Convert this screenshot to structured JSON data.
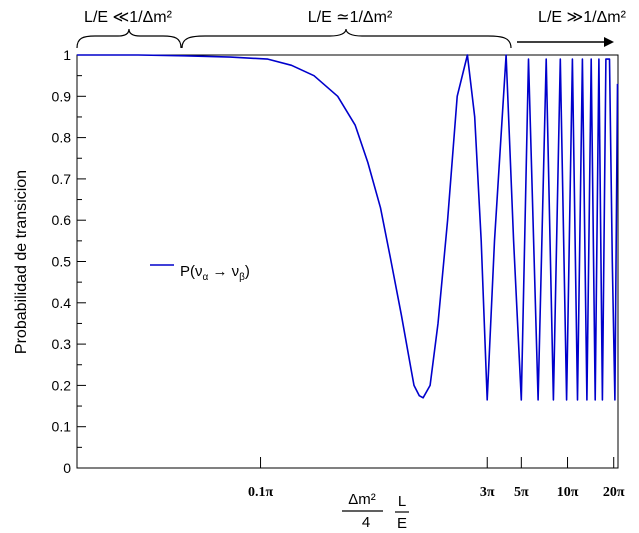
{
  "chart_data": {
    "type": "line",
    "title": "",
    "ylabel": "Probabilidad de transicion",
    "ylim": [
      0,
      1
    ],
    "y_ticks": [
      0,
      0.1,
      0.2,
      0.3,
      0.4,
      0.5,
      0.6,
      0.7,
      0.8,
      0.9,
      1
    ],
    "x_scale": "log",
    "x_ticks": [
      {
        "value": 0.314,
        "label": "0.1π"
      },
      {
        "value": 9.42,
        "label": "3π"
      },
      {
        "value": 15.71,
        "label": "5π"
      },
      {
        "value": 31.42,
        "label": "10π"
      },
      {
        "value": 62.83,
        "label": "20π"
      }
    ],
    "xlabel": {
      "num": "Δm²",
      "den": "4",
      "frac_num": "L",
      "frac_den": "E"
    },
    "regions": [
      {
        "label": "L/E ≪1/Δm²"
      },
      {
        "label": "L/E ≃1/Δm²"
      },
      {
        "label": "L/E ≫1/Δm²"
      }
    ],
    "series": [
      {
        "name": "P(να → νβ)",
        "name_parts": {
          "p": "P(",
          "nu1": "ν",
          "sub1": "α",
          "arrow": " → ",
          "nu2": "ν",
          "sub2": "β",
          "close": ")"
        },
        "color": "#0000cc",
        "x": [
          0.02,
          0.05,
          0.1,
          0.2,
          0.35,
          0.5,
          0.7,
          1.0,
          1.3,
          1.57,
          1.9,
          2.2,
          2.6,
          3.0,
          3.14,
          3.4,
          3.6,
          4.0,
          4.5,
          5.2,
          6.0,
          7.0,
          7.8,
          8.6,
          9.42,
          10.5,
          12.5,
          14.0,
          15.71,
          17.5,
          20.2,
          22.8,
          25.4,
          28.2,
          31.0,
          33.8,
          36.5,
          39.3,
          42.0,
          44.8,
          47.6,
          50.3,
          53.0,
          55.9,
          59.0,
          61.5,
          64.0,
          66.5
        ],
        "y": [
          1.0,
          1.0,
          0.998,
          0.995,
          0.99,
          0.975,
          0.95,
          0.9,
          0.83,
          0.74,
          0.63,
          0.51,
          0.37,
          0.24,
          0.2,
          0.175,
          0.17,
          0.2,
          0.35,
          0.6,
          0.9,
          1.0,
          0.85,
          0.55,
          0.165,
          0.55,
          1.0,
          0.55,
          0.165,
          0.99,
          0.165,
          0.99,
          0.165,
          0.99,
          0.165,
          0.99,
          0.165,
          0.99,
          0.165,
          0.99,
          0.165,
          0.99,
          0.165,
          0.99,
          0.99,
          0.5,
          0.165,
          0.93
        ]
      }
    ],
    "grid": false
  }
}
